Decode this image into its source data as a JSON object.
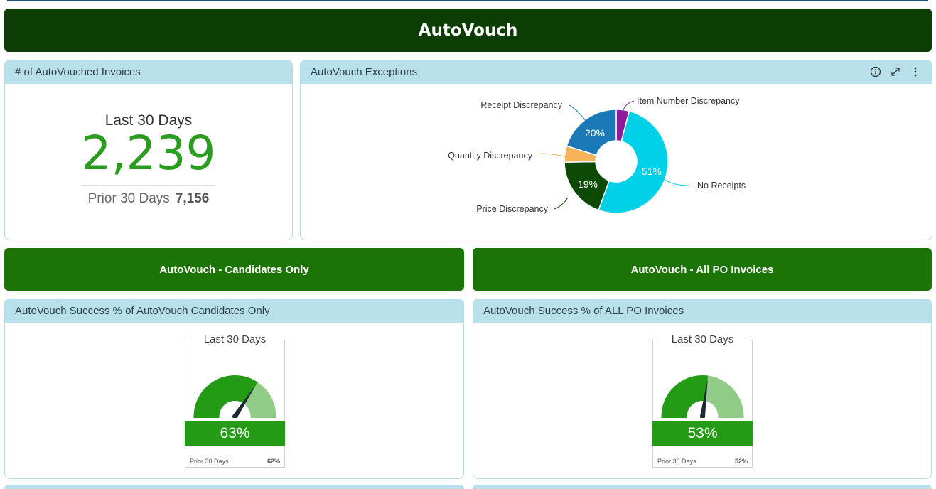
{
  "banner": {
    "title": "AutoVouch"
  },
  "kpi_card": {
    "title": "# of AutoVouched Invoices",
    "period": "Last 30 Days",
    "value": "2,239",
    "prior_label": "Prior 30 Days",
    "prior_value": "7,156"
  },
  "exceptions_card": {
    "title": "AutoVouch Exceptions",
    "icons": [
      "info-icon",
      "expand-icon",
      "more-vertical-icon"
    ]
  },
  "chart_data": {
    "type": "pie",
    "title": "AutoVouch Exceptions",
    "donut": true,
    "slices": [
      {
        "label": "Item Number Discrepancy",
        "value": 4,
        "color": "#8e1a9e",
        "pct_label": ""
      },
      {
        "label": "No Receipts",
        "value": 51,
        "color": "#00d0e8",
        "pct_label": "51%"
      },
      {
        "label": "Price Discrepancy",
        "value": 19,
        "color": "#0c4a05",
        "pct_label": "19%"
      },
      {
        "label": "Quantity Discrepancy",
        "value": 5,
        "color": "#f6b45a",
        "pct_label": ""
      },
      {
        "label": "Receipt Discrepancy",
        "value": 20,
        "color": "#1a7ab8",
        "pct_label": "20%"
      }
    ]
  },
  "buttons": {
    "candidates": "AutoVouch - Candidates Only",
    "all_po": "AutoVouch - All PO Invoices"
  },
  "gauge_left": {
    "card_title": "AutoVouch Success % of AutoVouch Candidates Only",
    "period": "Last 30 Days",
    "value": "63%",
    "fraction": 0.63,
    "prior_label": "Prior 30 Days",
    "prior_value": "62%"
  },
  "gauge_right": {
    "card_title": "AutoVouch Success % of ALL PO Invoices",
    "period": "Last 30 Days",
    "value": "53%",
    "fraction": 0.53,
    "prior_label": "Prior 30 Days",
    "prior_value": "52%"
  },
  "colors": {
    "banner": "#0b3d04",
    "button": "#1c7306",
    "header": "#b7e0ea",
    "kpi_value": "#2a9d1f",
    "gauge_fill": "#239b14",
    "gauge_rest": "#90cc86"
  }
}
